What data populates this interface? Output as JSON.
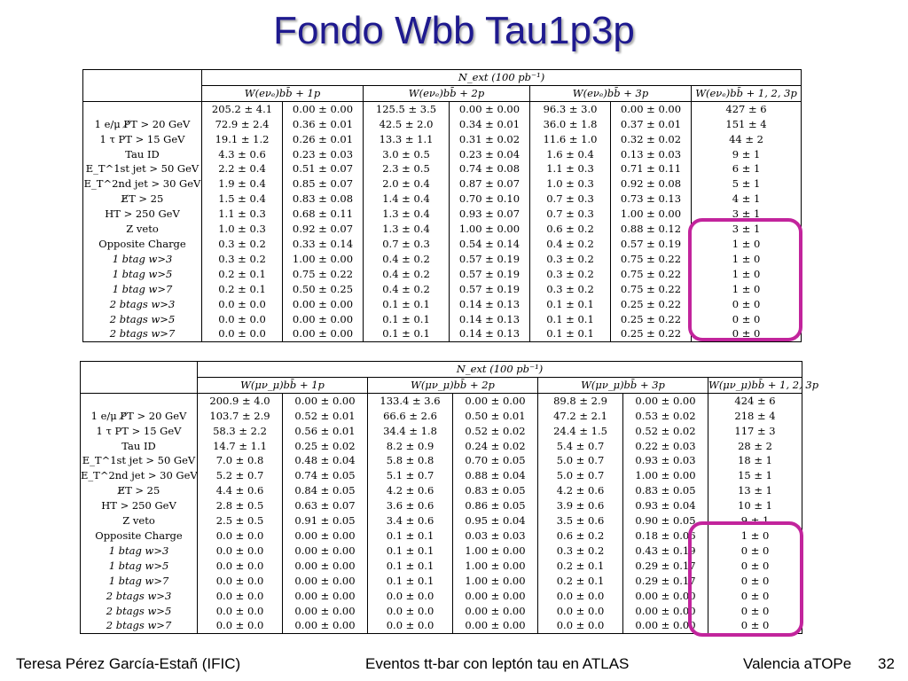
{
  "title": "Fondo Wbb Tau1p3p",
  "tables": [
    {
      "header_top": "N_ext (100 pb⁻¹)",
      "groups": [
        "W(eνₑ)bb̄ + 1p",
        "W(eνₑ)bb̄ + 2p",
        "W(eνₑ)bb̄ + 3p",
        "W(eνₑ)bb̄ + 1, 2, 3p"
      ],
      "rows": [
        {
          "label": "",
          "cells": [
            "205.2 ± 4.1",
            "0.00 ± 0.00",
            "125.5 ± 3.5",
            "0.00 ± 0.00",
            "96.3 ± 3.0",
            "0.00 ± 0.00",
            "427 ± 6"
          ]
        },
        {
          "label": "1 e/μ P̸T > 20 GeV",
          "cells": [
            "72.9 ± 2.4",
            "0.36 ± 0.01",
            "42.5 ± 2.0",
            "0.34 ± 0.01",
            "36.0 ± 1.8",
            "0.37 ± 0.01",
            "151 ± 4"
          ]
        },
        {
          "label": "1 τ PT > 15 GeV",
          "cells": [
            "19.1 ± 1.2",
            "0.26 ± 0.01",
            "13.3 ± 1.1",
            "0.31 ± 0.02",
            "11.6 ± 1.0",
            "0.32 ± 0.02",
            "44 ± 2"
          ]
        },
        {
          "label": "Tau ID",
          "cells": [
            "4.3 ± 0.6",
            "0.23 ± 0.03",
            "3.0 ± 0.5",
            "0.23 ± 0.04",
            "1.6 ± 0.4",
            "0.13 ± 0.03",
            "9 ± 1"
          ]
        },
        {
          "label": "E_T^1st jet > 50 GeV",
          "cells": [
            "2.2 ± 0.4",
            "0.51 ± 0.07",
            "2.3 ± 0.5",
            "0.74 ± 0.08",
            "1.1 ± 0.3",
            "0.71 ± 0.11",
            "6 ± 1"
          ]
        },
        {
          "label": "E_T^2nd jet > 30 GeV",
          "cells": [
            "1.9 ± 0.4",
            "0.85 ± 0.07",
            "2.0 ± 0.4",
            "0.87 ± 0.07",
            "1.0 ± 0.3",
            "0.92 ± 0.08",
            "5 ± 1"
          ]
        },
        {
          "label": "E̸T > 25",
          "cells": [
            "1.5 ± 0.4",
            "0.83 ± 0.08",
            "1.4 ± 0.4",
            "0.70 ± 0.10",
            "0.7 ± 0.3",
            "0.73 ± 0.13",
            "4 ± 1"
          ]
        },
        {
          "label": "HT > 250 GeV",
          "cells": [
            "1.1 ± 0.3",
            "0.68 ± 0.11",
            "1.3 ± 0.4",
            "0.93 ± 0.07",
            "0.7 ± 0.3",
            "1.00 ± 0.00",
            "3 ± 1"
          ]
        },
        {
          "label": "Z veto",
          "cells": [
            "1.0 ± 0.3",
            "0.92 ± 0.07",
            "1.3 ± 0.4",
            "1.00 ± 0.00",
            "0.6 ± 0.2",
            "0.88 ± 0.12",
            "3 ± 1"
          ]
        },
        {
          "label": "Opposite Charge",
          "cells": [
            "0.3 ± 0.2",
            "0.33 ± 0.14",
            "0.7 ± 0.3",
            "0.54 ± 0.14",
            "0.4 ± 0.2",
            "0.57 ± 0.19",
            "1 ± 0"
          ]
        },
        {
          "label": "1 btag w>3",
          "cells": [
            "0.3 ± 0.2",
            "1.00 ± 0.00",
            "0.4 ± 0.2",
            "0.57 ± 0.19",
            "0.3 ± 0.2",
            "0.75 ± 0.22",
            "1 ± 0"
          ]
        },
        {
          "label": "1 btag w>5",
          "cells": [
            "0.2 ± 0.1",
            "0.75 ± 0.22",
            "0.4 ± 0.2",
            "0.57 ± 0.19",
            "0.3 ± 0.2",
            "0.75 ± 0.22",
            "1 ± 0"
          ]
        },
        {
          "label": "1 btag w>7",
          "cells": [
            "0.2 ± 0.1",
            "0.50 ± 0.25",
            "0.4 ± 0.2",
            "0.57 ± 0.19",
            "0.3 ± 0.2",
            "0.75 ± 0.22",
            "1 ± 0"
          ]
        },
        {
          "label": "2 btags w>3",
          "cells": [
            "0.0 ± 0.0",
            "0.00 ± 0.00",
            "0.1 ± 0.1",
            "0.14 ± 0.13",
            "0.1 ± 0.1",
            "0.25 ± 0.22",
            "0 ± 0"
          ]
        },
        {
          "label": "2 btags w>5",
          "cells": [
            "0.0 ± 0.0",
            "0.00 ± 0.00",
            "0.1 ± 0.1",
            "0.14 ± 0.13",
            "0.1 ± 0.1",
            "0.25 ± 0.22",
            "0 ± 0"
          ]
        },
        {
          "label": "2 btags w>7",
          "cells": [
            "0.0 ± 0.0",
            "0.00 ± 0.00",
            "0.1 ± 0.1",
            "0.14 ± 0.13",
            "0.1 ± 0.1",
            "0.25 ± 0.22",
            "0 ± 0"
          ]
        }
      ]
    },
    {
      "header_top": "N_ext (100 pb⁻¹)",
      "groups": [
        "W(μν_μ)bb̄ + 1p",
        "W(μν_μ)bb̄ + 2p",
        "W(μν_μ)bb̄ + 3p",
        "W(μν_μ)bb̄ + 1, 2, 3p"
      ],
      "rows": [
        {
          "label": "",
          "cells": [
            "200.9 ± 4.0",
            "0.00 ± 0.00",
            "133.4 ± 3.6",
            "0.00 ± 0.00",
            "89.8 ± 2.9",
            "0.00 ± 0.00",
            "424 ± 6"
          ]
        },
        {
          "label": "1 e/μ P̸T > 20 GeV",
          "cells": [
            "103.7 ± 2.9",
            "0.52 ± 0.01",
            "66.6 ± 2.6",
            "0.50 ± 0.01",
            "47.2 ± 2.1",
            "0.53 ± 0.02",
            "218 ± 4"
          ]
        },
        {
          "label": "1 τ PT > 15 GeV",
          "cells": [
            "58.3 ± 2.2",
            "0.56 ± 0.01",
            "34.4 ± 1.8",
            "0.52 ± 0.02",
            "24.4 ± 1.5",
            "0.52 ± 0.02",
            "117 ± 3"
          ]
        },
        {
          "label": "Tau ID",
          "cells": [
            "14.7 ± 1.1",
            "0.25 ± 0.02",
            "8.2 ± 0.9",
            "0.24 ± 0.02",
            "5.4 ± 0.7",
            "0.22 ± 0.03",
            "28 ± 2"
          ]
        },
        {
          "label": "E_T^1st jet > 50 GeV",
          "cells": [
            "7.0 ± 0.8",
            "0.48 ± 0.04",
            "5.8 ± 0.8",
            "0.70 ± 0.05",
            "5.0 ± 0.7",
            "0.93 ± 0.03",
            "18 ± 1"
          ]
        },
        {
          "label": "E_T^2nd jet > 30 GeV",
          "cells": [
            "5.2 ± 0.7",
            "0.74 ± 0.05",
            "5.1 ± 0.7",
            "0.88 ± 0.04",
            "5.0 ± 0.7",
            "1.00 ± 0.00",
            "15 ± 1"
          ]
        },
        {
          "label": "E̸T > 25",
          "cells": [
            "4.4 ± 0.6",
            "0.84 ± 0.05",
            "4.2 ± 0.6",
            "0.83 ± 0.05",
            "4.2 ± 0.6",
            "0.83 ± 0.05",
            "13 ± 1"
          ]
        },
        {
          "label": "HT > 250 GeV",
          "cells": [
            "2.8 ± 0.5",
            "0.63 ± 0.07",
            "3.6 ± 0.6",
            "0.86 ± 0.05",
            "3.9 ± 0.6",
            "0.93 ± 0.04",
            "10 ± 1"
          ]
        },
        {
          "label": "Z veto",
          "cells": [
            "2.5 ± 0.5",
            "0.91 ± 0.05",
            "3.4 ± 0.6",
            "0.95 ± 0.04",
            "3.5 ± 0.6",
            "0.90 ± 0.05",
            "9 ± 1"
          ]
        },
        {
          "label": "Opposite Charge",
          "cells": [
            "0.0 ± 0.0",
            "0.00 ± 0.00",
            "0.1 ± 0.1",
            "0.03 ± 0.03",
            "0.6 ± 0.2",
            "0.18 ± 0.06",
            "1 ± 0"
          ]
        },
        {
          "label": "1 btag w>3",
          "cells": [
            "0.0 ± 0.0",
            "0.00 ± 0.00",
            "0.1 ± 0.1",
            "1.00 ± 0.00",
            "0.3 ± 0.2",
            "0.43 ± 0.19",
            "0 ± 0"
          ]
        },
        {
          "label": "1 btag w>5",
          "cells": [
            "0.0 ± 0.0",
            "0.00 ± 0.00",
            "0.1 ± 0.1",
            "1.00 ± 0.00",
            "0.2 ± 0.1",
            "0.29 ± 0.17",
            "0 ± 0"
          ]
        },
        {
          "label": "1 btag w>7",
          "cells": [
            "0.0 ± 0.0",
            "0.00 ± 0.00",
            "0.1 ± 0.1",
            "1.00 ± 0.00",
            "0.2 ± 0.1",
            "0.29 ± 0.17",
            "0 ± 0"
          ]
        },
        {
          "label": "2 btags w>3",
          "cells": [
            "0.0 ± 0.0",
            "0.00 ± 0.00",
            "0.0 ± 0.0",
            "0.00 ± 0.00",
            "0.0 ± 0.0",
            "0.00 ± 0.00",
            "0 ± 0"
          ]
        },
        {
          "label": "2 btags w>5",
          "cells": [
            "0.0 ± 0.0",
            "0.00 ± 0.00",
            "0.0 ± 0.0",
            "0.00 ± 0.00",
            "0.0 ± 0.0",
            "0.00 ± 0.00",
            "0 ± 0"
          ]
        },
        {
          "label": "2 btags w>7",
          "cells": [
            "0.0 ± 0.0",
            "0.00 ± 0.00",
            "0.0 ± 0.0",
            "0.00 ± 0.00",
            "0.0 ± 0.0",
            "0.00 ± 0.00",
            "0 ± 0"
          ]
        }
      ]
    }
  ],
  "footer": {
    "author": "Teresa Pérez García-Estañ (IFIC)",
    "talk": "Eventos tt-bar con leptón tau en ATLAS",
    "venue": "Valencia aTOPe",
    "page": "32"
  },
  "highlight_color": "#c2249c",
  "title_color": "#1f1a8f"
}
